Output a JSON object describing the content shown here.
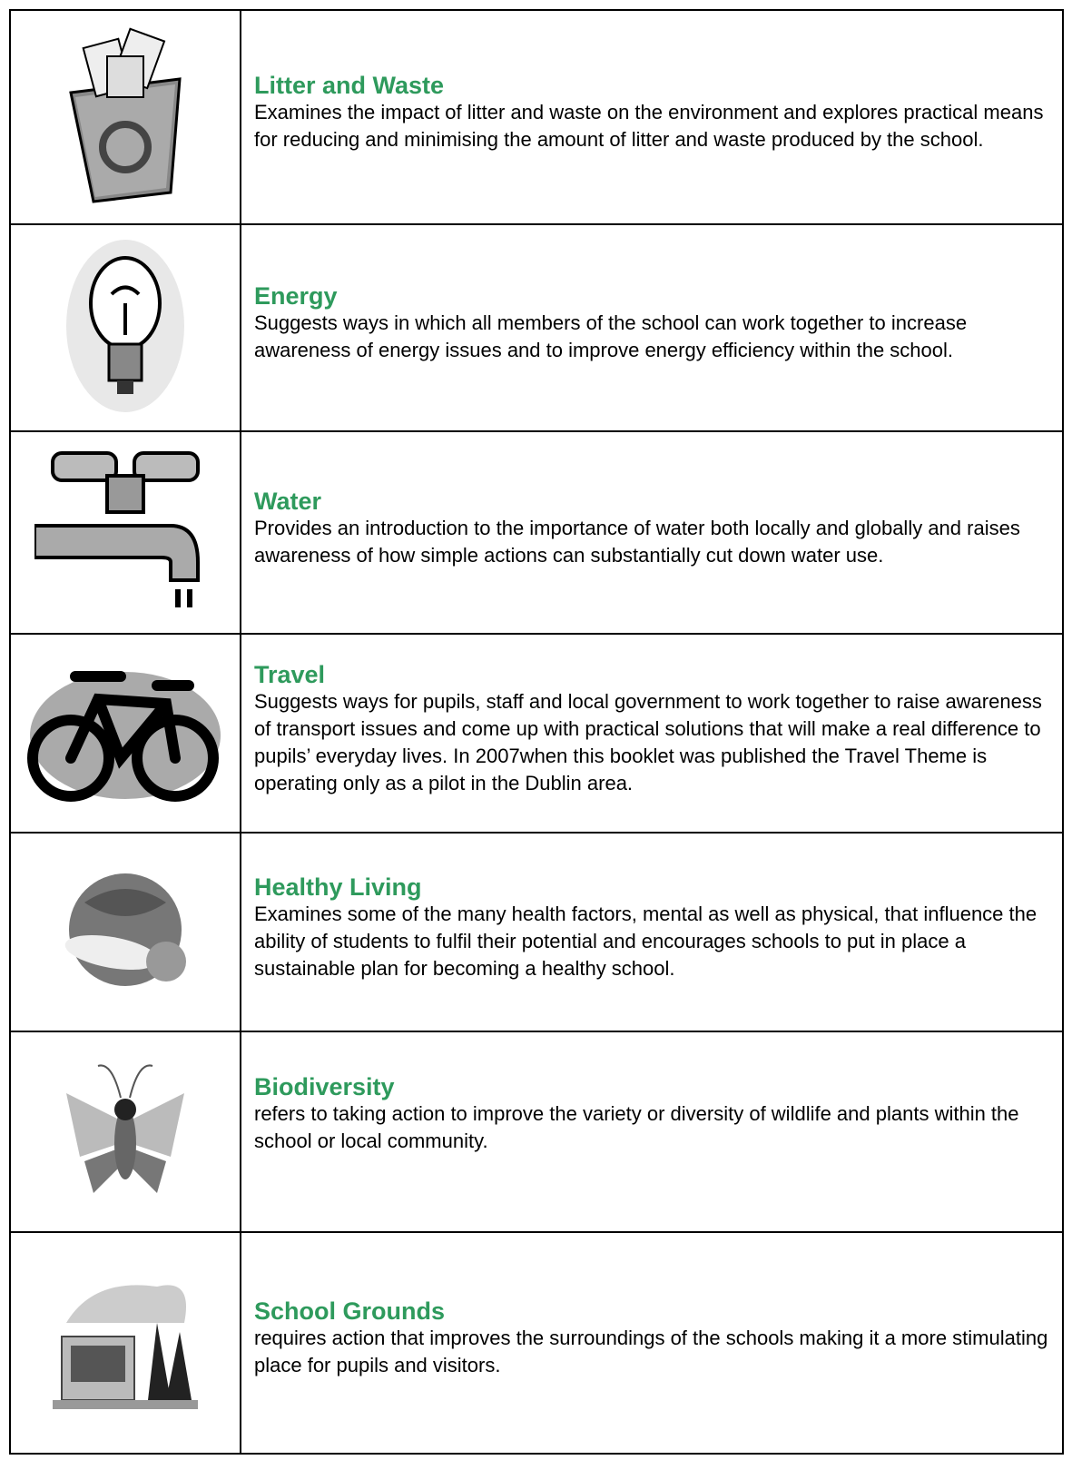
{
  "table": {
    "rows": [
      {
        "title": "Litter and Waste",
        "text": "Examines the impact of litter and waste on the environment and explores practical means for reducing and minimising the amount of litter and waste produced by the school."
      },
      {
        "title": "Energy",
        "text": "Suggests ways in which all members of the school can work together to increase awareness of energy issues and to improve energy efficiency within the school."
      },
      {
        "title": "Water",
        "text": "Provides an introduction to the importance of water both locally and globally and raises awareness of how simple actions can substantially cut down water use."
      },
      {
        "title": "Travel",
        "text": "Suggests ways for pupils, staff and local government to work together to raise awareness of transport issues and come up with practical solutions that will make a real difference to pupils’ everyday lives.  In 2007when this booklet was published the Travel Theme is operating only as a pilot in the Dublin area."
      },
      {
        "title": "Healthy Living",
        "text": "Examines some of the many health factors, mental as well as physical, that influence the ability of students to fulfil their potential and encourages schools to put in place a sustainable plan for becoming a healthy school."
      },
      {
        "title": "Biodiversity",
        "text": "refers to taking action to improve the variety or diversity of wildlife and plants within the school or local community."
      },
      {
        "title": "School Grounds",
        "text": "requires action that improves the surroundings of the schools making it a more stimulating place for pupils and visitors."
      }
    ]
  }
}
